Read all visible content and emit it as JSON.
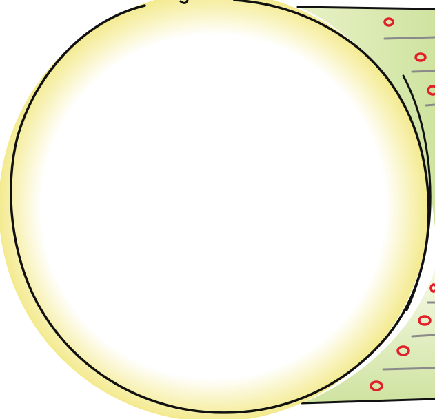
{
  "illustration": {
    "subject": "magnified-circle-with-tube",
    "colors": {
      "circle_glow": "#f5ee9a",
      "circle_center": "#ffffff",
      "tube_fill": "#cfe3a0",
      "tube_fill_light": "#f2f7dc",
      "outline": "#111111",
      "dots": "#e0202a",
      "dashes": "#8a8a8a"
    }
  }
}
